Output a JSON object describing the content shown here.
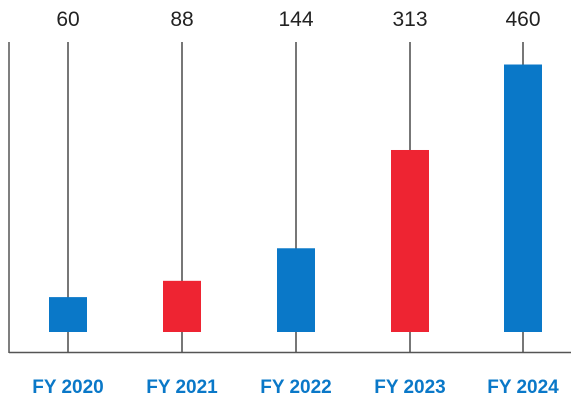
{
  "chart_data": {
    "type": "bar",
    "categories": [
      "FY 2020",
      "FY 2021",
      "FY 2022",
      "FY 2023",
      "FY 2024"
    ],
    "values": [
      60,
      88,
      144,
      313,
      460
    ],
    "data_labels": [
      "60",
      "88",
      "144",
      "313",
      "460"
    ],
    "bar_colors": [
      "#0a78c8",
      "#ee2432",
      "#0a78c8",
      "#ee2432",
      "#0a78c8"
    ],
    "category_label_color": "#0a78c8",
    "axis_color": "#555555",
    "ylim": [
      0,
      500
    ],
    "grid": false,
    "legend": "none",
    "title": "",
    "xlabel": "",
    "ylabel": ""
  }
}
